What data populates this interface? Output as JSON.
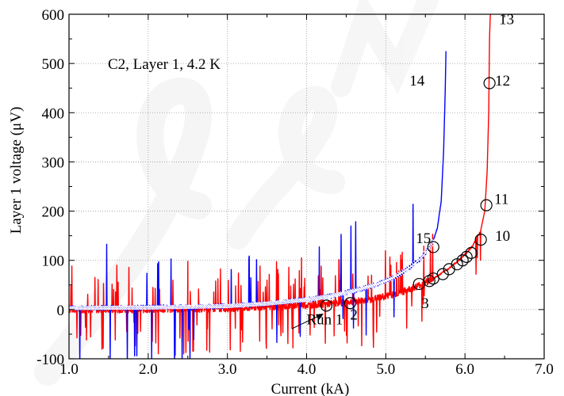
{
  "chart_data": {
    "type": "line",
    "title": "",
    "subtitle": "C2, Layer 1, 4.2 K",
    "xlabel": "Current (kA)",
    "ylabel": "Layer 1 voltage (μV)",
    "xlim": [
      1.0,
      7.0
    ],
    "ylim": [
      -100,
      600
    ],
    "x_ticks": [
      "1.0",
      "2.0",
      "3.0",
      "4.0",
      "5.0",
      "6.0",
      "7.0"
    ],
    "y_ticks": [
      "-100",
      "0",
      "100",
      "200",
      "300",
      "400",
      "500",
      "600"
    ],
    "grid": true,
    "colors": {
      "red": "#ff0000",
      "blue": "#0000ff",
      "white": "#ffffff"
    },
    "series": [
      {
        "color": "red",
        "x": [
          1.0,
          2.0,
          3.0,
          3.5,
          4.0,
          4.3,
          4.5,
          4.8,
          5.0,
          5.2,
          5.4,
          5.5,
          5.6,
          5.7,
          5.8,
          5.9,
          6.0,
          6.1,
          6.2,
          6.25,
          6.28,
          6.3,
          6.31,
          6.32
        ],
        "y": [
          0,
          0,
          2,
          5,
          9,
          12,
          15,
          20,
          27,
          35,
          48,
          55,
          63,
          73,
          84,
          97,
          112,
          130,
          160,
          200,
          280,
          400,
          550,
          600
        ]
      },
      {
        "color": "blue",
        "x": [
          1.0,
          2.0,
          3.0,
          3.5,
          4.0,
          4.3,
          4.6,
          4.9,
          5.1,
          5.3,
          5.45,
          5.55,
          5.6,
          5.65,
          5.7,
          5.73,
          5.75,
          5.76
        ],
        "y": [
          3,
          4,
          7,
          12,
          20,
          27,
          38,
          52,
          65,
          85,
          105,
          125,
          140,
          165,
          220,
          320,
          440,
          525
        ]
      }
    ],
    "markers": [
      {
        "x": 4.25,
        "y": 8
      },
      {
        "x": 4.55,
        "y": 13
      },
      {
        "x": 5.42,
        "y": 52
      },
      {
        "x": 5.55,
        "y": 58
      },
      {
        "x": 5.6,
        "y": 63
      },
      {
        "x": 5.72,
        "y": 72
      },
      {
        "x": 5.8,
        "y": 82
      },
      {
        "x": 5.9,
        "y": 92
      },
      {
        "x": 5.97,
        "y": 100
      },
      {
        "x": 6.02,
        "y": 107
      },
      {
        "x": 6.08,
        "y": 115
      },
      {
        "x": 6.2,
        "y": 142
      },
      {
        "x": 6.27,
        "y": 212
      },
      {
        "x": 6.31,
        "y": 460
      },
      {
        "x": 5.6,
        "y": 127
      }
    ],
    "annotations": [
      {
        "text": "Run 1",
        "x": 4.0,
        "y": -30
      },
      {
        "text": "2",
        "x": 4.55,
        "y": -20
      },
      {
        "text": "3",
        "x": 5.45,
        "y": 3
      },
      {
        "text": "10",
        "x": 6.38,
        "y": 140
      },
      {
        "text": "11",
        "x": 6.37,
        "y": 215
      },
      {
        "text": "12",
        "x": 6.38,
        "y": 455
      },
      {
        "text": "13",
        "x": 6.43,
        "y": 580
      },
      {
        "text": "14",
        "x": 5.3,
        "y": 455
      },
      {
        "text": "15",
        "x": 5.38,
        "y": 135
      }
    ]
  }
}
